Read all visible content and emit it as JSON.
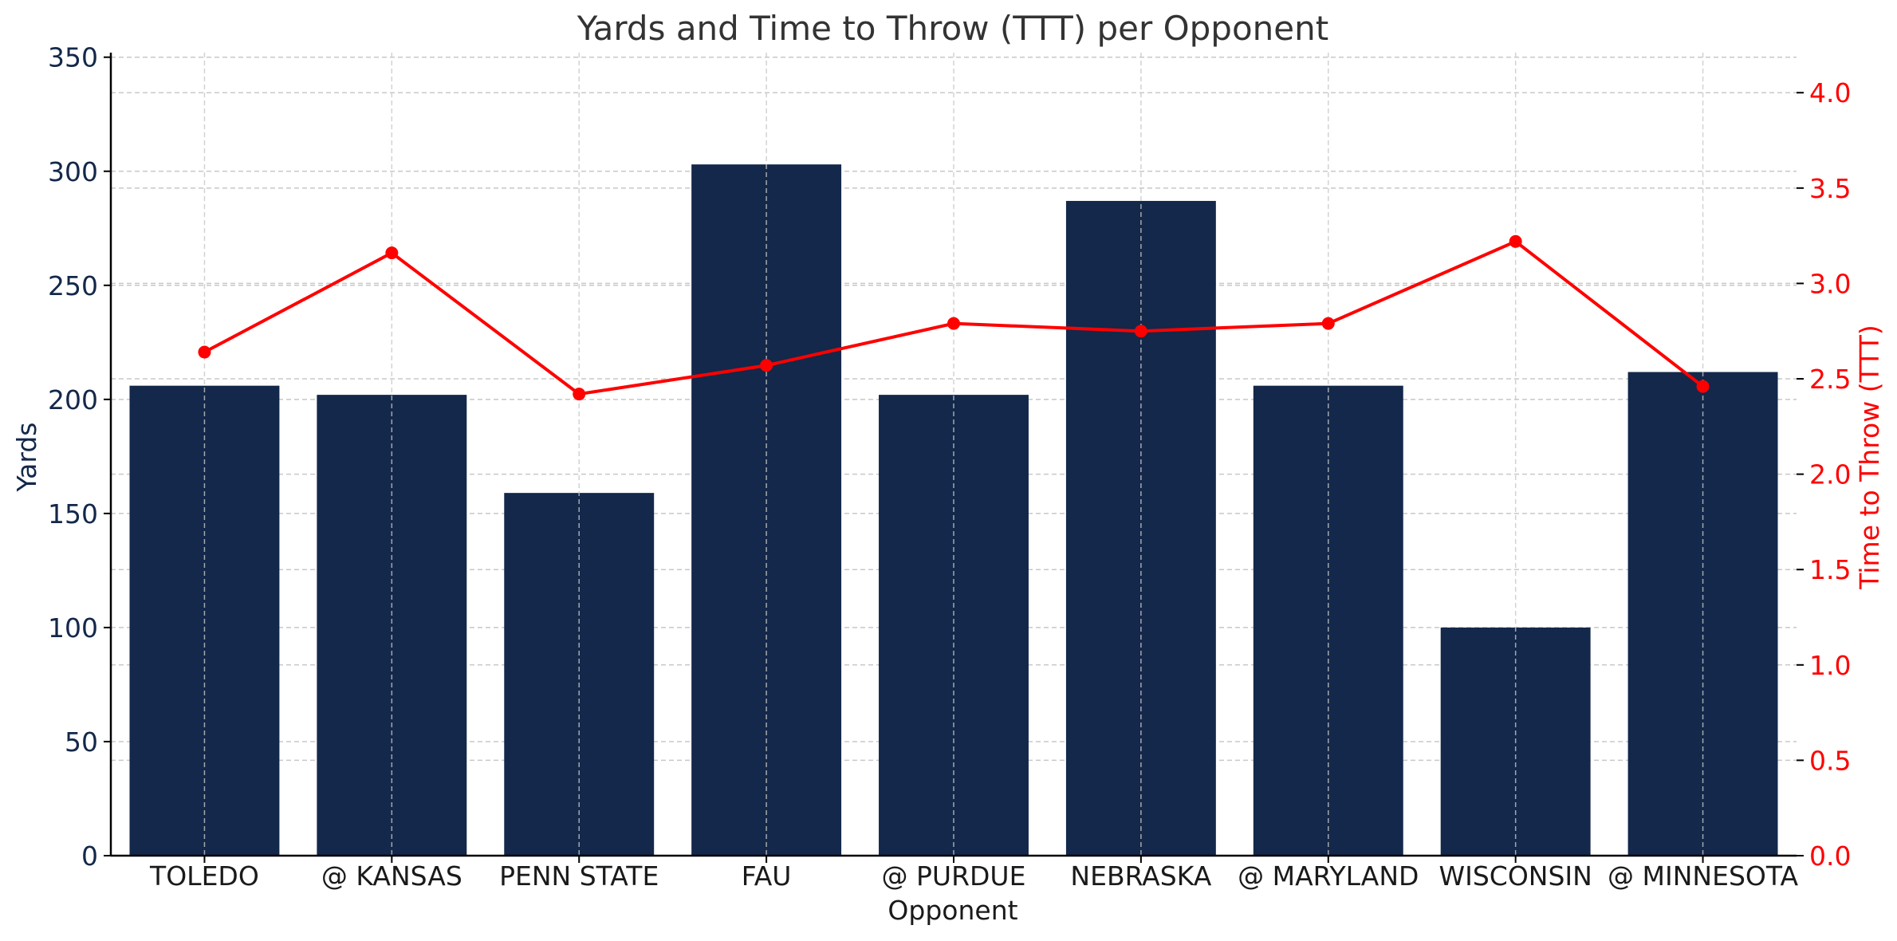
{
  "chart_data": {
    "type": "bar",
    "title": "Yards and Time to Throw (TTT) per Opponent",
    "xlabel": "Opponent",
    "ylabel": "Yards",
    "y2label": "Time to Throw (TTT)",
    "categories": [
      "TOLEDO",
      "@ KANSAS",
      "PENN STATE",
      "FAU",
      "@ PURDUE",
      "NEBRASKA",
      "@ MARYLAND",
      "WISCONSIN",
      "@ MINNESOTA"
    ],
    "series": [
      {
        "name": "Yards",
        "type": "bar",
        "axis": "left",
        "values": [
          206,
          202,
          159,
          303,
          202,
          287,
          206,
          100,
          212
        ]
      },
      {
        "name": "TTT",
        "type": "line",
        "axis": "right",
        "values": [
          2.64,
          3.16,
          2.42,
          2.57,
          2.79,
          2.75,
          2.79,
          3.22,
          2.46
        ]
      }
    ],
    "ylim": [
      0,
      352
    ],
    "y2lim": [
      0,
      4.21
    ],
    "yticks": [
      0,
      50,
      100,
      150,
      200,
      250,
      300,
      350
    ],
    "y2ticks": [
      0.0,
      0.5,
      1.0,
      1.5,
      2.0,
      2.5,
      3.0,
      3.5,
      4.0
    ],
    "y2tick_labels": [
      "0.0",
      "0.5",
      "1.0",
      "1.5",
      "2.0",
      "2.5",
      "3.0",
      "3.5",
      "4.0"
    ],
    "grid": true,
    "colors": {
      "bar": "#13284a",
      "line": "#ff0000",
      "left_axis": "#13284a",
      "right_axis": "#ff0000",
      "grid": "#c8c8c8"
    }
  }
}
